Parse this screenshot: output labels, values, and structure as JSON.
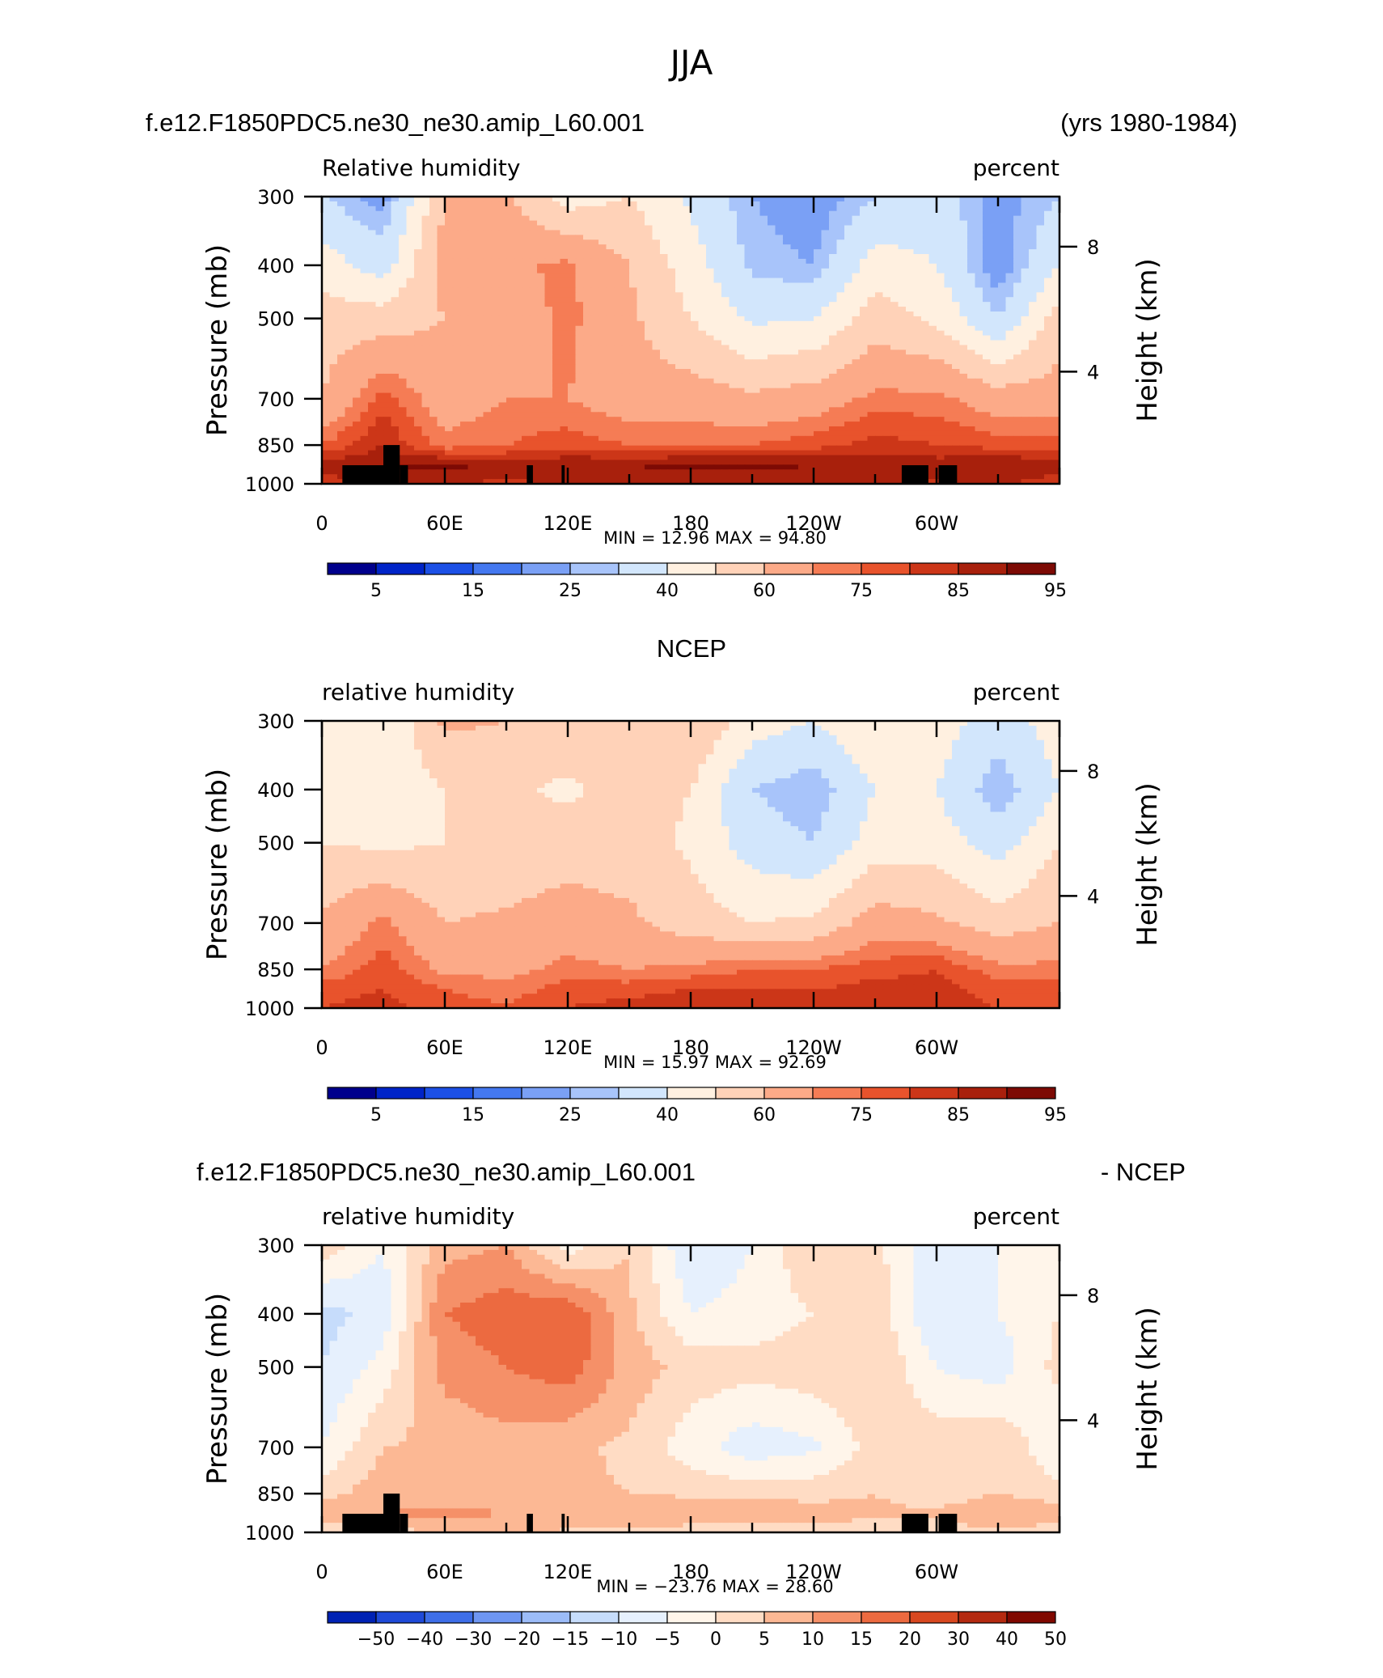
{
  "header": {
    "season": "JJA",
    "case": "f.e12.F1850PDC5.ne30_ne30.amip_L60.001",
    "years": "(yrs 1980-1984)"
  },
  "panels": [
    {
      "title": "",
      "variable": "Relative humidity",
      "units": "percent",
      "stats": "MIN =    12.96   MAX =    94.80",
      "colorbar_labels": [
        "5",
        "15",
        "25",
        "40",
        "60",
        "75",
        "85",
        "95"
      ]
    },
    {
      "title": "NCEP",
      "variable": "relative humidity",
      "units": "percent",
      "stats": "MIN =    15.97   MAX =    92.69",
      "colorbar_labels": [
        "5",
        "15",
        "25",
        "40",
        "60",
        "75",
        "85",
        "95"
      ]
    },
    {
      "title_left": "f.e12.F1850PDC5.ne30_ne30.amip_L60.001",
      "title_right": "- NCEP",
      "variable": "relative humidity",
      "units": "percent",
      "stats": "MIN = −23.76   MAX =    28.60",
      "colorbar_labels": [
        "−50",
        "−40",
        "−30",
        "−20",
        "−15",
        "−10",
        "−5",
        "0",
        "5",
        "10",
        "15",
        "20",
        "30",
        "40",
        "50"
      ]
    }
  ],
  "axes": {
    "ylabel": "Pressure (mb)",
    "ylabel_right": "Height (km)",
    "pressure_ticks": [
      "300",
      "400",
      "500",
      "700",
      "850",
      "1000"
    ],
    "height_ticks": [
      "8",
      "4"
    ],
    "lon_ticks": [
      "0",
      "60E",
      "120E",
      "180",
      "120W",
      "60W"
    ]
  },
  "colors": {
    "abs_scale": [
      "#00008c",
      "#0024c8",
      "#1c50e6",
      "#4478f0",
      "#7aa0f5",
      "#a8c4fa",
      "#d2e6fc",
      "#fff0e0",
      "#ffd2b8",
      "#fcaa88",
      "#f57c55",
      "#e8532c",
      "#cc3618",
      "#a8200c",
      "#7d0a04"
    ],
    "diff_scale": [
      "#0022b4",
      "#1f4ad8",
      "#3e6ee8",
      "#6e96f2",
      "#9cbcf8",
      "#c6dcfb",
      "#e6f0fd",
      "#fff5ea",
      "#ffdcc4",
      "#fcb894",
      "#f59068",
      "#ec6a40",
      "#d84820",
      "#b42a10",
      "#800800"
    ],
    "land_mask": "#000000"
  },
  "chart_data": [
    {
      "type": "heatmap",
      "title": "JJA",
      "subtitle": "Relative humidity",
      "xlabel": "",
      "ylabel": "Pressure (mb)",
      "units": "percent",
      "x": [
        0,
        30,
        60,
        90,
        120,
        150,
        180,
        210,
        240,
        270,
        300,
        330,
        360
      ],
      "y": [
        300,
        400,
        500,
        700,
        850,
        925,
        1000
      ],
      "min": 12.96,
      "max": 94.8,
      "levels": [
        5,
        10,
        15,
        20,
        25,
        30,
        40,
        50,
        60,
        70,
        75,
        80,
        85,
        90,
        95
      ],
      "values": [
        [
          30,
          22,
          60,
          62,
          45,
          50,
          38,
          25,
          20,
          30,
          35,
          22,
          30
        ],
        [
          45,
          35,
          65,
          68,
          72,
          60,
          45,
          28,
          25,
          45,
          40,
          20,
          40
        ],
        [
          55,
          55,
          60,
          65,
          72,
          62,
          50,
          38,
          40,
          55,
          48,
          30,
          55
        ],
        [
          60,
          78,
          65,
          70,
          70,
          65,
          65,
          62,
          65,
          72,
          72,
          65,
          65
        ],
        [
          75,
          85,
          72,
          75,
          78,
          75,
          75,
          75,
          78,
          82,
          80,
          78,
          78
        ],
        [
          88,
          90,
          92,
          88,
          90,
          90,
          92,
          92,
          90,
          90,
          88,
          90,
          88
        ],
        [
          82,
          85,
          85,
          84,
          85,
          86,
          86,
          86,
          86,
          85,
          84,
          86,
          82
        ]
      ]
    },
    {
      "type": "heatmap",
      "title": "NCEP",
      "subtitle": "relative humidity",
      "xlabel": "",
      "ylabel": "Pressure (mb)",
      "units": "percent",
      "x": [
        0,
        30,
        60,
        90,
        120,
        150,
        180,
        210,
        240,
        270,
        300,
        330,
        360
      ],
      "y": [
        300,
        400,
        500,
        700,
        850,
        925,
        1000
      ],
      "min": 15.97,
      "max": 92.69,
      "levels": [
        5,
        10,
        15,
        20,
        25,
        30,
        40,
        50,
        60,
        70,
        75,
        80,
        85,
        90,
        95
      ],
      "values": [
        [
          45,
          40,
          62,
          60,
          58,
          60,
          60,
          45,
          40,
          50,
          45,
          35,
          45
        ],
        [
          40,
          42,
          50,
          52,
          48,
          55,
          50,
          30,
          25,
          40,
          40,
          25,
          40
        ],
        [
          50,
          48,
          50,
          52,
          55,
          55,
          48,
          35,
          30,
          45,
          45,
          35,
          50
        ],
        [
          62,
          72,
          60,
          62,
          65,
          62,
          55,
          50,
          52,
          65,
          62,
          55,
          60
        ],
        [
          70,
          78,
          68,
          68,
          72,
          70,
          72,
          75,
          75,
          78,
          80,
          72,
          72
        ],
        [
          78,
          80,
          75,
          72,
          78,
          78,
          80,
          80,
          80,
          82,
          82,
          78,
          78
        ],
        [
          80,
          82,
          78,
          76,
          80,
          82,
          84,
          84,
          82,
          84,
          82,
          80,
          80
        ]
      ]
    },
    {
      "type": "heatmap",
      "title": "f.e12.F1850PDC5.ne30_ne30.amip_L60.001 - NCEP",
      "subtitle": "relative humidity",
      "xlabel": "",
      "ylabel": "Pressure (mb)",
      "units": "percent",
      "x": [
        0,
        30,
        60,
        90,
        120,
        150,
        180,
        210,
        240,
        270,
        300,
        330,
        360
      ],
      "y": [
        300,
        400,
        500,
        700,
        850,
        925,
        1000
      ],
      "min": -23.76,
      "max": 28.6,
      "levels": [
        -50,
        -40,
        -30,
        -20,
        -15,
        -10,
        -5,
        0,
        5,
        10,
        15,
        20,
        30,
        40,
        50
      ],
      "values": [
        [
          3,
          -5,
          8,
          10,
          -3,
          5,
          -10,
          -5,
          5,
          2,
          -10,
          -5,
          0
        ],
        [
          -12,
          -8,
          15,
          18,
          20,
          6,
          -5,
          -3,
          0,
          3,
          -10,
          -5,
          0
        ],
        [
          -10,
          -3,
          12,
          15,
          18,
          8,
          3,
          2,
          3,
          5,
          -5,
          -8,
          2
        ],
        [
          -5,
          5,
          6,
          8,
          6,
          4,
          -3,
          -8,
          -6,
          2,
          3,
          5,
          -5
        ],
        [
          3,
          8,
          6,
          8,
          6,
          5,
          4,
          3,
          3,
          5,
          2,
          5,
          2
        ],
        [
          8,
          10,
          12,
          10,
          10,
          10,
          9,
          9,
          8,
          6,
          6,
          10,
          8
        ],
        [
          2,
          3,
          5,
          6,
          4,
          4,
          2,
          2,
          3,
          1,
          2,
          4,
          2
        ]
      ]
    }
  ]
}
